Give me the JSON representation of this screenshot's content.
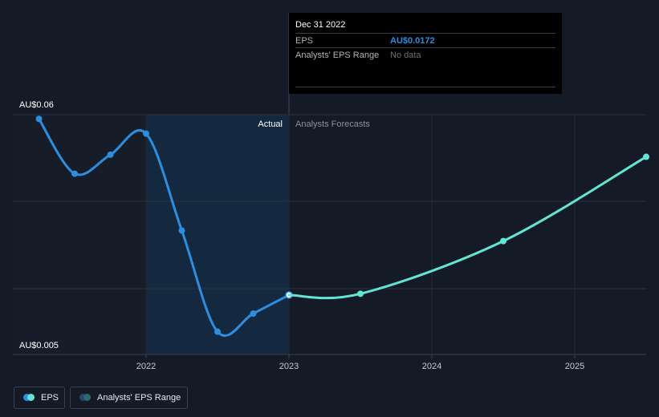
{
  "chart_data": {
    "type": "line",
    "ylim": [
      0.005,
      0.06
    ],
    "y_tick_labels": [
      "AU$0.06",
      "AU$0.005"
    ],
    "x_tick_labels": [
      "2022",
      "2023",
      "2024",
      "2025"
    ],
    "divider_labels": {
      "actual": "Actual",
      "forecast": "Analysts Forecasts"
    },
    "series": [
      {
        "name": "EPS",
        "kind": "actual",
        "color": "#2d8ee0",
        "points": [
          {
            "x": 2021.25,
            "y": 0.059
          },
          {
            "x": 2021.5,
            "y": 0.046
          },
          {
            "x": 2021.75,
            "y": 0.0505
          },
          {
            "x": 2022.0,
            "y": 0.0555
          },
          {
            "x": 2022.25,
            "y": 0.0325
          },
          {
            "x": 2022.5,
            "y": 0.0085
          },
          {
            "x": 2022.75,
            "y": 0.0128
          },
          {
            "x": 2023.0,
            "y": 0.0172
          }
        ]
      },
      {
        "name": "EPS",
        "kind": "forecast",
        "color": "#62e6d3",
        "points": [
          {
            "x": 2023.0,
            "y": 0.0172
          },
          {
            "x": 2023.5,
            "y": 0.0175
          },
          {
            "x": 2024.5,
            "y": 0.03
          },
          {
            "x": 2025.5,
            "y": 0.05
          }
        ]
      }
    ],
    "grid": true
  },
  "tooltip": {
    "date": "Dec 31 2022",
    "eps_label": "EPS",
    "eps_value": "AU$0.0172",
    "range_label": "Analysts' EPS Range",
    "range_value": "No data"
  },
  "legend": {
    "eps": "EPS",
    "range": "Analysts' EPS Range"
  },
  "colors": {
    "background": "#151b26",
    "actual_line": "#2d8ee0",
    "forecast_line": "#62e6d3",
    "highlight_band": "#14283f"
  }
}
